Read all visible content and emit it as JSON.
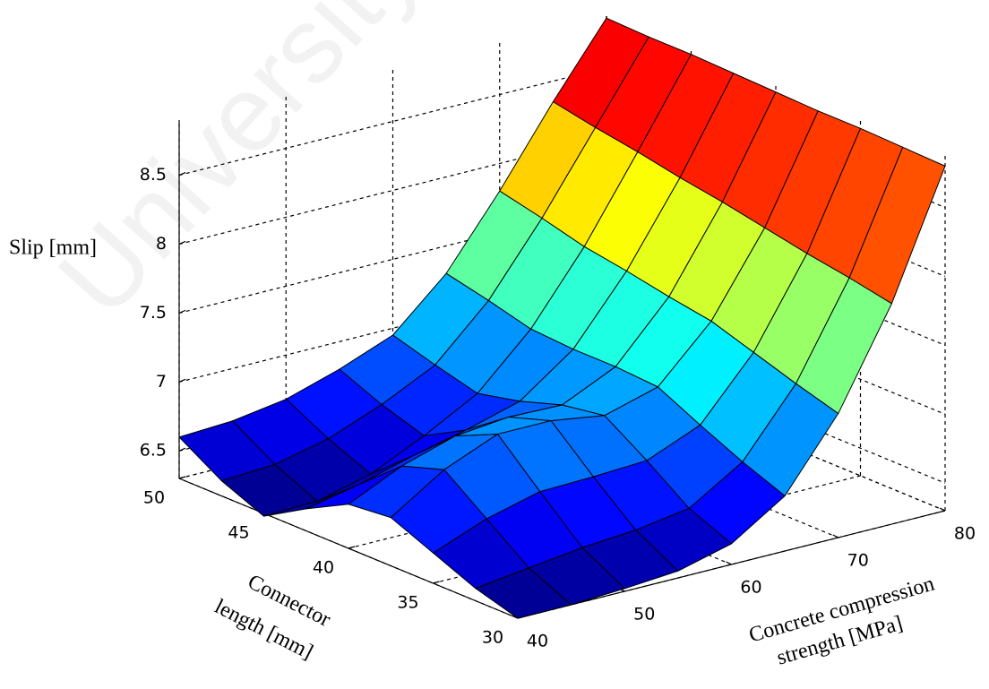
{
  "chart_data": {
    "type": "surface",
    "watermark": "University",
    "zlabel": "Slip [mm]",
    "ylabel": [
      "Connector",
      "length [mm]"
    ],
    "xlabel": [
      "Concrete compression",
      "strength [MPa]"
    ],
    "x": [
      40,
      45,
      50,
      55,
      60,
      65,
      70,
      75,
      80
    ],
    "y": [
      30,
      32.5,
      35,
      37.5,
      40,
      42.5,
      45,
      47.5,
      50
    ],
    "z": [
      [
        6.3,
        6.3,
        6.32,
        6.35,
        6.45,
        6.7,
        7.2,
        7.9,
        8.8
      ],
      [
        6.39,
        6.44,
        6.49,
        6.52,
        6.58,
        6.82,
        7.29,
        7.96,
        8.81
      ],
      [
        6.52,
        6.67,
        6.77,
        6.78,
        6.8,
        6.96,
        7.39,
        8.01,
        8.82
      ],
      [
        6.65,
        6.9,
        7.06,
        7.06,
        7.0,
        7.11,
        7.49,
        8.07,
        8.82
      ],
      [
        6.62,
        6.8,
        6.92,
        6.96,
        6.95,
        7.13,
        7.54,
        8.13,
        8.83
      ],
      [
        6.46,
        6.54,
        6.65,
        6.74,
        6.85,
        7.13,
        7.6,
        8.18,
        8.84
      ],
      [
        6.28,
        6.29,
        6.39,
        6.57,
        6.78,
        7.15,
        7.65,
        8.24,
        8.85
      ],
      [
        6.41,
        6.43,
        6.52,
        6.67,
        6.86,
        7.23,
        7.73,
        8.29,
        8.85
      ],
      [
        6.6,
        6.62,
        6.68,
        6.8,
        6.95,
        7.3,
        7.8,
        8.35,
        8.86
      ]
    ],
    "xlim": [
      40,
      80
    ],
    "ylim": [
      30,
      50
    ],
    "zlim": [
      6.3,
      8.9
    ],
    "xticks": [
      40,
      50,
      60,
      70,
      80
    ],
    "yticks": [
      30,
      35,
      40,
      45,
      50
    ],
    "zticks": [
      6.5,
      7,
      7.5,
      8,
      8.5
    ],
    "colormap": "jet",
    "grid": true
  }
}
